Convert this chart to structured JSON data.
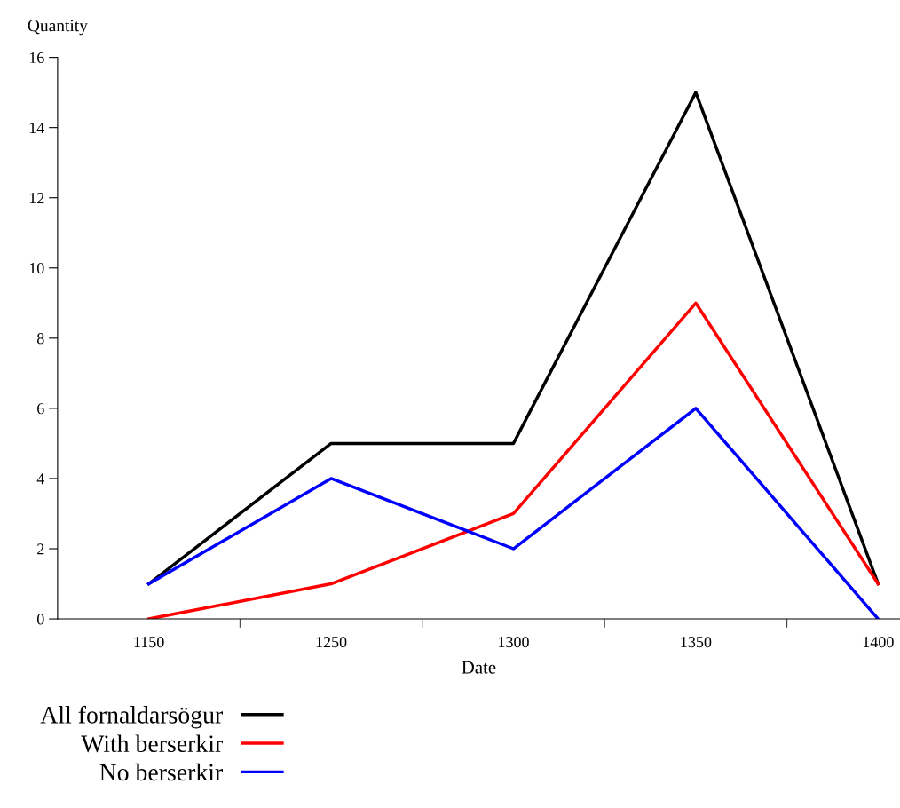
{
  "chart_data": {
    "type": "line",
    "xlabel": "Date",
    "ylabel": "Quantity",
    "categories": [
      "1150",
      "1250",
      "1300",
      "1350",
      "1400"
    ],
    "series": [
      {
        "name": "All fornaldarsögur",
        "color": "#000000",
        "values": [
          1,
          5,
          5,
          15,
          1
        ]
      },
      {
        "name": "With berserkir",
        "color": "#ff0000",
        "values": [
          0,
          1,
          3,
          9,
          1
        ]
      },
      {
        "name": "No berserkir",
        "color": "#0000ff",
        "values": [
          1,
          4,
          2,
          6,
          0
        ]
      }
    ],
    "ylim": [
      0,
      16
    ],
    "yticks": [
      0,
      2,
      4,
      6,
      8,
      10,
      12,
      14,
      16
    ],
    "grid": false,
    "legend": "bottom left",
    "marker": "none",
    "line_style": "solid"
  }
}
